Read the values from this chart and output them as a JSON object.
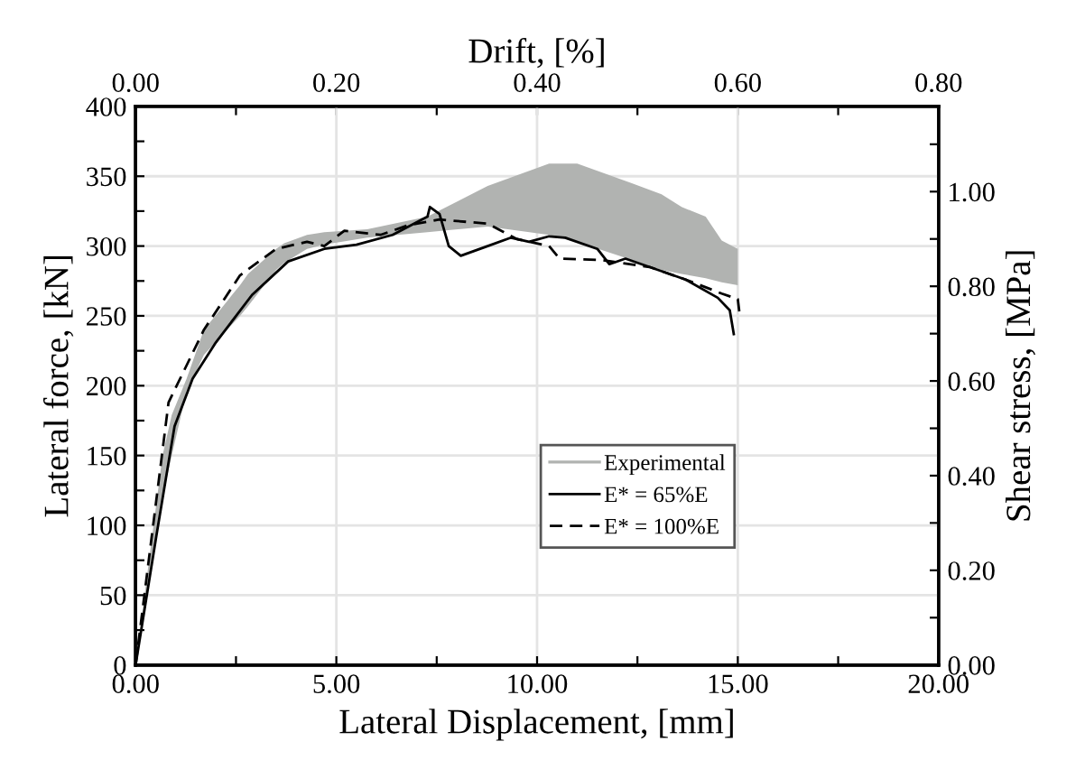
{
  "chart_data": {
    "type": "line",
    "xlabel": "Lateral Displacement, [mm]",
    "ylabel": "Lateral force, [kN]",
    "y2label": "Shear stress, [MPa]",
    "x2label": "Drift, [%]",
    "xlim": [
      0,
      20
    ],
    "xticks": [
      {
        "value": 0,
        "label": "0.00"
      },
      {
        "value": 2.5,
        "label": null
      },
      {
        "value": 5,
        "label": "5.00"
      },
      {
        "value": 7.5,
        "label": null
      },
      {
        "value": 10,
        "label": "10.00"
      },
      {
        "value": 12.5,
        "label": null
      },
      {
        "value": 15,
        "label": "15.00"
      },
      {
        "value": 17.5,
        "label": null
      },
      {
        "value": 20,
        "label": "20.00"
      }
    ],
    "ylim": [
      0,
      400
    ],
    "yticks": [
      0,
      {
        "value": 25,
        "label": null
      },
      50,
      {
        "value": 75,
        "label": null
      },
      100,
      {
        "value": 125,
        "label": null
      },
      150,
      {
        "value": 175,
        "label": null
      },
      200,
      {
        "value": 225,
        "label": null
      },
      250,
      {
        "value": 275,
        "label": null
      },
      300,
      {
        "value": 325,
        "label": null
      },
      350,
      {
        "value": 375,
        "label": null
      },
      400
    ],
    "x2lim": [
      0,
      0.8
    ],
    "x2ticks": [
      {
        "value": 0,
        "label": "0.00"
      },
      {
        "value": 0.1,
        "label": null
      },
      {
        "value": 0.2,
        "label": "0.20"
      },
      {
        "value": 0.3,
        "label": null
      },
      {
        "value": 0.4,
        "label": "0.40"
      },
      {
        "value": 0.5,
        "label": null
      },
      {
        "value": 0.6,
        "label": "0.60"
      },
      {
        "value": 0.7,
        "label": null
      },
      {
        "value": 0.8,
        "label": "0.80"
      }
    ],
    "y2lim": [
      0,
      1.18
    ],
    "y2ticks": [
      {
        "value": 0,
        "label": "0.00"
      },
      {
        "value": 0.1,
        "label": null
      },
      {
        "value": 0.2,
        "label": "0.20"
      },
      {
        "value": 0.3,
        "label": null
      },
      {
        "value": 0.4,
        "label": "0.40"
      },
      {
        "value": 0.5,
        "label": null
      },
      {
        "value": 0.6,
        "label": "0.60"
      },
      {
        "value": 0.7,
        "label": null
      },
      {
        "value": 0.8,
        "label": "0.80"
      },
      {
        "value": 0.9,
        "label": null
      },
      {
        "value": 1.0,
        "label": "1.00"
      },
      {
        "value": 1.1,
        "label": null
      }
    ],
    "grid": true,
    "legend": "bottom right",
    "series": [
      {
        "name": "Experimental",
        "type": "area",
        "color": "#b1b3b1",
        "x": [
          0,
          0.67,
          0.9,
          1.27,
          1.7,
          2.6,
          2.8,
          3.5,
          3.7,
          4.27,
          4.7,
          5.77,
          7.27,
          8.77,
          10.3,
          11.0,
          12.36,
          13.1,
          13.6,
          14.2,
          14.6,
          15
        ],
        "values": [
          null,
          null,
          null,
          null,
          null,
          null,
          null,
          null,
          null,
          null,
          null,
          null,
          null,
          null,
          null,
          null,
          null,
          null,
          null,
          null,
          null,
          null
        ],
        "upper": [
          0,
          150,
          179,
          205,
          240,
          272,
          280,
          298,
          302,
          308,
          310,
          312,
          321,
          343,
          359,
          359,
          345,
          337,
          328,
          321,
          304,
          298
        ],
        "lower": [
          0,
          120,
          150,
          196,
          222,
          250,
          257,
          283,
          288,
          298,
          301,
          306,
          310,
          314,
          308,
          303,
          290,
          283,
          280,
          277,
          274,
          272
        ]
      },
      {
        "name": "E* = 65%E",
        "color": "#000000",
        "line_style": "solid",
        "x": [
          0,
          0.52,
          0.97,
          1.42,
          2.0,
          2.9,
          3.8,
          4.7,
          5.5,
          6.4,
          7.27,
          7.33,
          7.57,
          7.8,
          8.1,
          8.77,
          9.35,
          9.8,
          10.3,
          10.7,
          11.5,
          11.8,
          12.2,
          12.8,
          13.7,
          14.5,
          14.8,
          14.9
        ],
        "values": [
          0,
          93,
          171,
          205,
          231,
          265,
          289,
          298,
          301,
          308,
          321,
          328,
          323,
          300,
          293,
          300,
          306,
          303,
          307,
          306,
          298,
          287,
          291,
          285,
          276,
          263,
          254,
          237
        ]
      },
      {
        "name": "E* = 100%E",
        "color": "#000000",
        "line_style": "dashed",
        "x": [
          0,
          0.82,
          1.7,
          2.6,
          3.5,
          4.27,
          4.7,
          5.2,
          6.1,
          6.8,
          7.57,
          8.77,
          9.5,
          10.3,
          10.56,
          11.6,
          12.8,
          13.7,
          14.6,
          15,
          15.05
        ],
        "values": [
          0,
          188,
          240,
          279,
          298,
          303,
          300,
          311,
          308,
          315,
          319,
          316,
          305,
          300,
          291,
          290,
          285,
          276,
          266,
          262,
          250
        ]
      }
    ]
  }
}
